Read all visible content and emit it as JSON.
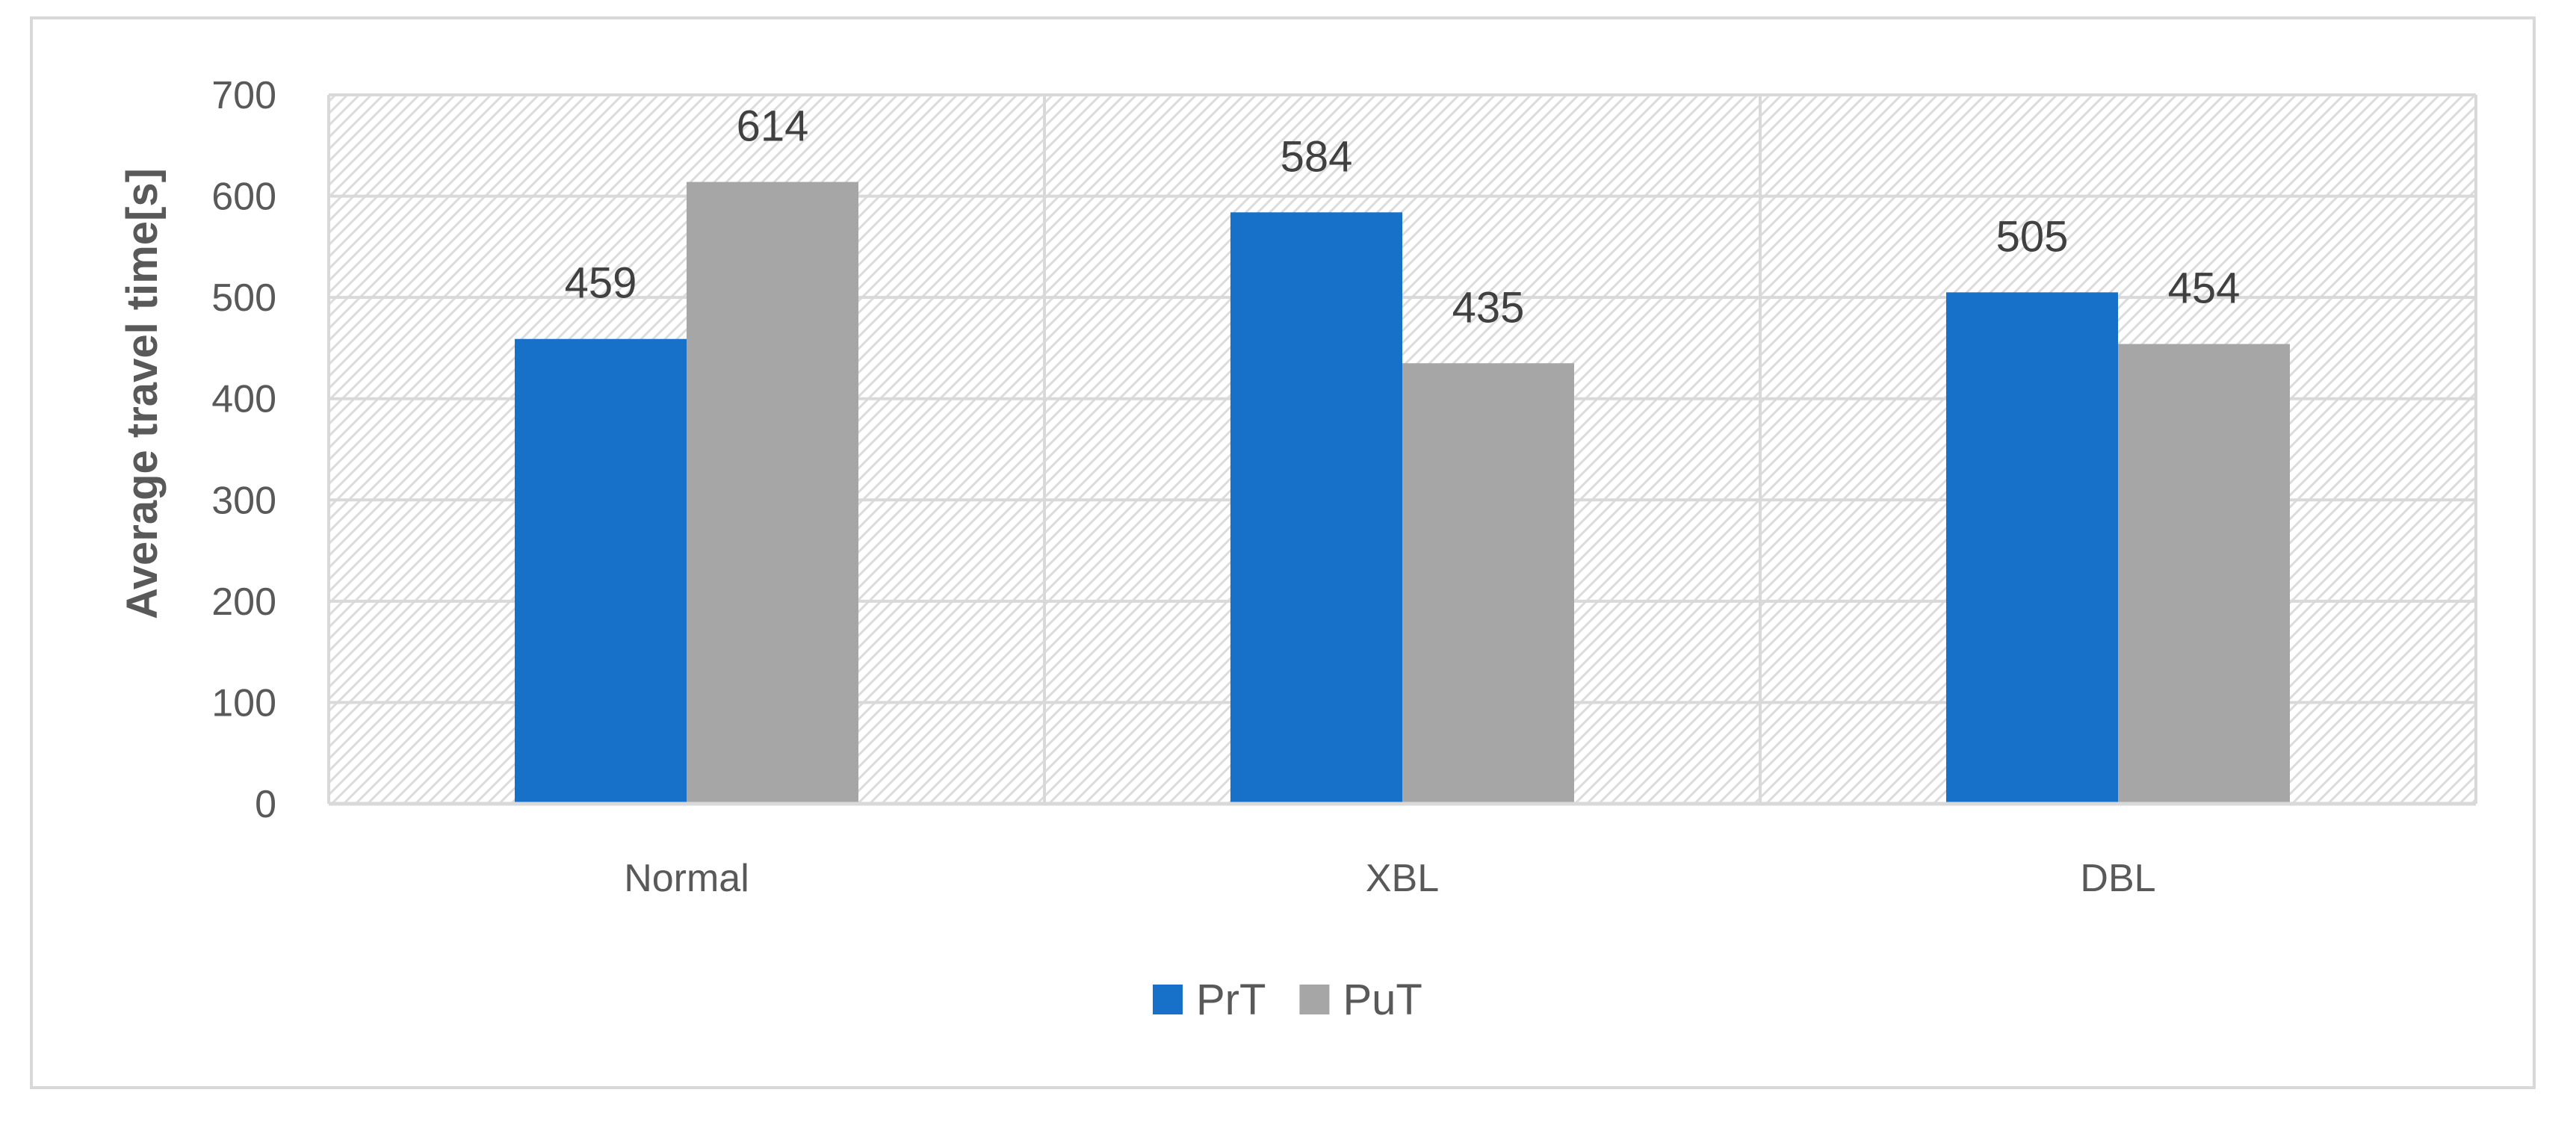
{
  "chart_data": {
    "type": "bar",
    "title": "",
    "xlabel": "",
    "ylabel": "Average travel time[s]",
    "ylim": [
      0,
      700
    ],
    "yticks": [
      0,
      100,
      200,
      300,
      400,
      500,
      600,
      700
    ],
    "categories": [
      "Normal",
      "XBL",
      "DBL"
    ],
    "series": [
      {
        "name": "PrT",
        "values": [
          459,
          584,
          505
        ],
        "color": "#1871C9"
      },
      {
        "name": "PuT",
        "values": [
          614,
          435,
          454
        ],
        "color": "#A6A6A6"
      }
    ],
    "grid": true,
    "plot_background": "diagonal hatch",
    "legend_position": "bottom"
  }
}
